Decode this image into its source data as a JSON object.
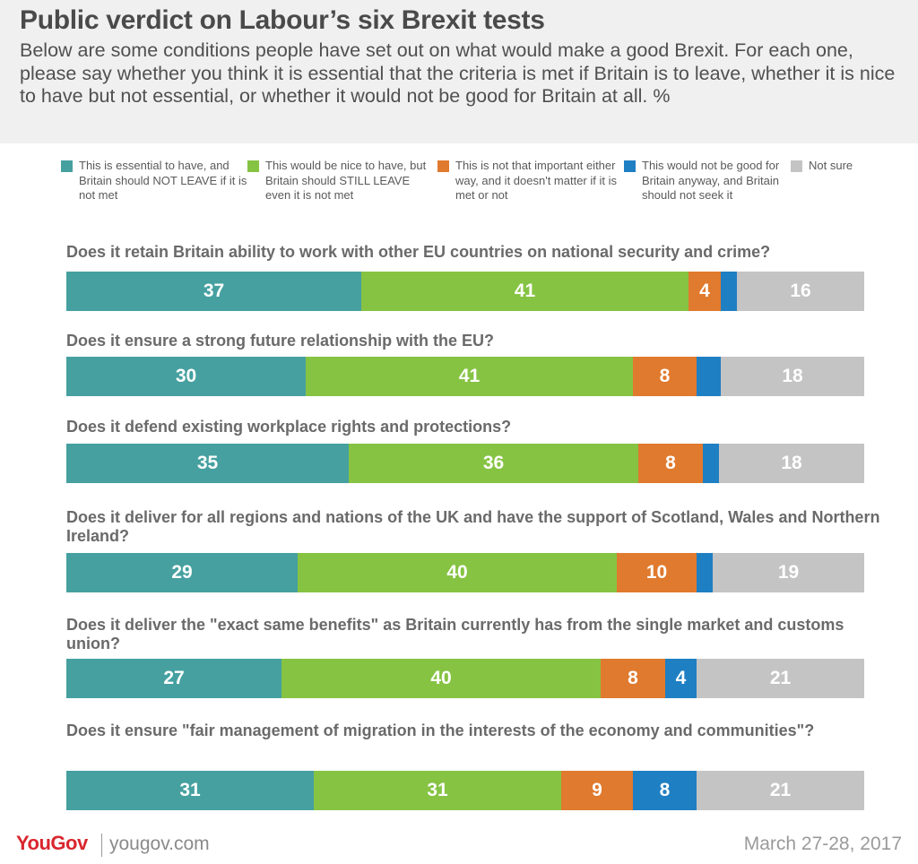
{
  "title": "Public verdict on Labour’s six Brexit tests",
  "subtitle": "Below are some conditions people have set out on what would make a good Brexit. For each one, please say whether you think it is essential that the criteria is met if Britain is to leave, whether it is nice to have but not essential, or whether it would not be good for Britain at all. %",
  "footer": {
    "logo": "YouGov",
    "site": "yougov.com",
    "date": "March 27-28, 2017"
  },
  "chart_data": {
    "type": "bar",
    "stacked": true,
    "orientation": "horizontal",
    "unit": "%",
    "categories": [
      "Does it retain Britain ability to work with other EU countries on national security and crime?",
      "Does it ensure a strong future relationship with the EU?",
      "Does it defend existing workplace rights and protections?",
      "Does it deliver for all regions and nations of the UK and have the support of Scotland, Wales and Northern Ireland?",
      "Does it deliver the \"exact same benefits\" as Britain currently has from the single market and customs union?",
      "Does it ensure \"fair management of migration in the interests of the economy and communities\"?"
    ],
    "series": [
      {
        "name": "This is essential to have, and Britain should NOT LEAVE if it is not met",
        "color": "#46a0a0",
        "values": [
          37,
          30,
          35,
          29,
          27,
          31
        ]
      },
      {
        "name": "This would be nice to have, but Britain should STILL LEAVE even it is not met",
        "color": "#86c343",
        "values": [
          41,
          41,
          36,
          40,
          40,
          31
        ]
      },
      {
        "name": "This is not that important either way, and it doesn't matter if it is met or not",
        "color": "#e07a2e",
        "values": [
          4,
          8,
          8,
          10,
          8,
          9
        ]
      },
      {
        "name": "This would not be good for Britain anyway, and Britain should not seek it",
        "color": "#1f7fc3",
        "values": [
          2,
          3,
          2,
          2,
          4,
          8
        ]
      },
      {
        "name": "Not sure",
        "color": "#c4c4c4",
        "values": [
          16,
          18,
          18,
          19,
          21,
          21
        ]
      }
    ],
    "show_label": [
      [
        true,
        true,
        true,
        false,
        true
      ],
      [
        true,
        true,
        true,
        false,
        true
      ],
      [
        true,
        true,
        true,
        false,
        true
      ],
      [
        true,
        true,
        true,
        false,
        true
      ],
      [
        true,
        true,
        true,
        true,
        true
      ],
      [
        true,
        true,
        true,
        true,
        true
      ]
    ],
    "legend_position": "top",
    "grid": false
  }
}
